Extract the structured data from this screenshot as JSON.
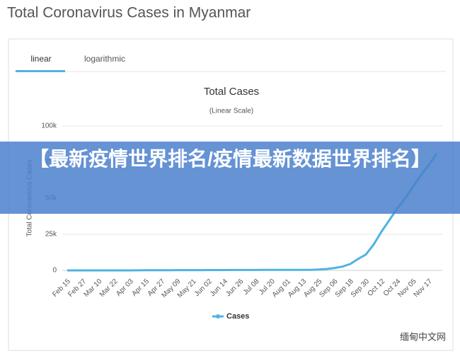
{
  "page_title": "Total Coronavirus Cases in Myanmar",
  "tabs": [
    "linear",
    "logarithmic"
  ],
  "banner": "【最新疫情世界排名/疫情最新数据世界排名】",
  "watermark": "缅甸中文网",
  "chart_data": {
    "type": "line",
    "title": "Total Cases",
    "subtitle": "(Linear Scale)",
    "y_label": "Total Coronavirus Cases",
    "categories": [
      "Feb 15",
      null,
      "Feb 27",
      null,
      "Mar 10",
      null,
      "Mar 22",
      null,
      "Apr 03",
      null,
      "Apr 15",
      null,
      "Apr 27",
      null,
      "May 09",
      null,
      "May 21",
      null,
      "Jun 02",
      null,
      "Jun 14",
      null,
      "Jun 26",
      null,
      "Jul 08",
      null,
      "Jul 20",
      null,
      "Aug 01",
      null,
      "Aug 13",
      null,
      "Aug 25",
      null,
      "Sep 06",
      null,
      "Sep 18",
      null,
      "Sep 30",
      null,
      "Oct 12",
      null,
      "Oct 24",
      null,
      "Nov 05",
      null,
      "Nov 17",
      null
    ],
    "series": [
      {
        "name": "Cases",
        "color": "#4fb3e3",
        "values": [
          0,
          0,
          0,
          0,
          0,
          0,
          2,
          10,
          20,
          41,
          74,
          111,
          146,
          155,
          180,
          184,
          199,
          206,
          228,
          242,
          262,
          287,
          293,
          304,
          316,
          336,
          343,
          350,
          353,
          360,
          369,
          413,
          574,
          1000,
          1659,
          2620,
          4402,
          7900,
          11000,
          18000,
          27000,
          35000,
          43000,
          50000,
          58000,
          66000,
          73000,
          81000
        ]
      }
    ],
    "ylim": [
      0,
      100000
    ],
    "yticks": [
      0,
      {
        "value": 25000,
        "label": "25k"
      },
      {
        "value": 50000,
        "label": "50k"
      },
      {
        "value": 75000,
        "label": "75k"
      },
      {
        "value": 100000,
        "label": "100k"
      }
    ],
    "grid": true
  }
}
